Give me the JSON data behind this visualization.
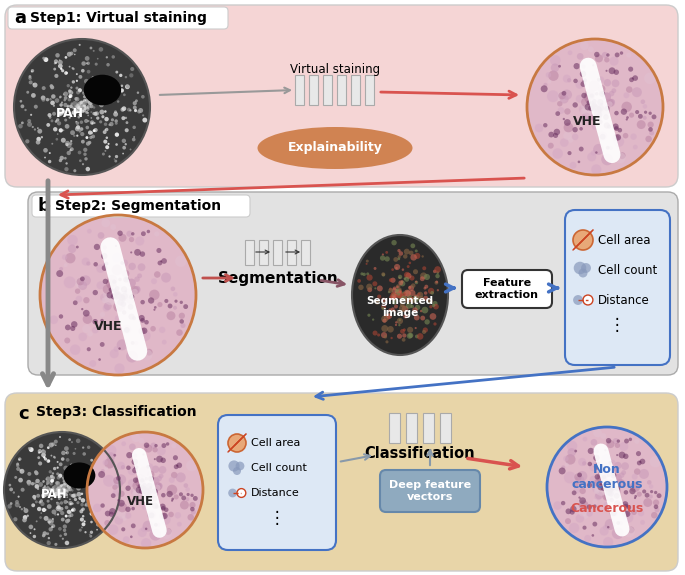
{
  "panel_a_title": "Step1: Virtual staining",
  "panel_b_title": "Step2: Segmentation",
  "panel_c_title": "Step3: Classification",
  "panel_a_color": "#f5d5d5",
  "panel_b_color": "#e2e2e2",
  "panel_c_color": "#e8d5a8",
  "label_a": "a",
  "label_b": "b",
  "label_c": "c",
  "pah_label": "PAH",
  "vhe_label": "VHE",
  "virtual_staining_label": "Virtual staining",
  "explainability_label": "Explainability",
  "segmentation_label": "Segmentation",
  "segmented_image_label": "Segmented\nimage",
  "feature_extraction_label": "Feature\nextraction",
  "classification_label": "Classification",
  "deep_feature_vectors_label": "Deep feature\nvectors",
  "non_cancerous_label": "Non\ncancerous",
  "cancerous_label": "Cancerous",
  "cell_area_label": "Cell area",
  "cell_count_label": "Cell count",
  "distance_label": "Distance",
  "dots_label": "⋮",
  "arrow_pink": "#d9534f",
  "arrow_gray": "#888888",
  "arrow_blue": "#4472c4",
  "panel_a_ec": "#cccccc",
  "panel_b_ec": "#aaaaaa",
  "panel_c_ec": "#cccccc",
  "vhe_border": "#c87941",
  "pah_border": "#555555",
  "feature_box_bg": "#dde8f5",
  "feature_box_ec": "#4472c4",
  "feat_ext_bg": "#ffffff",
  "feat_ext_ec": "#333333",
  "dfv_bg": "#8faabf",
  "dfv_ec": "#6688aa",
  "nn_color": "#e8e8e8",
  "nn_ec": "#aaaaaa",
  "title_box_bg": "#ffffff",
  "explainability_color": "#cc7a44"
}
